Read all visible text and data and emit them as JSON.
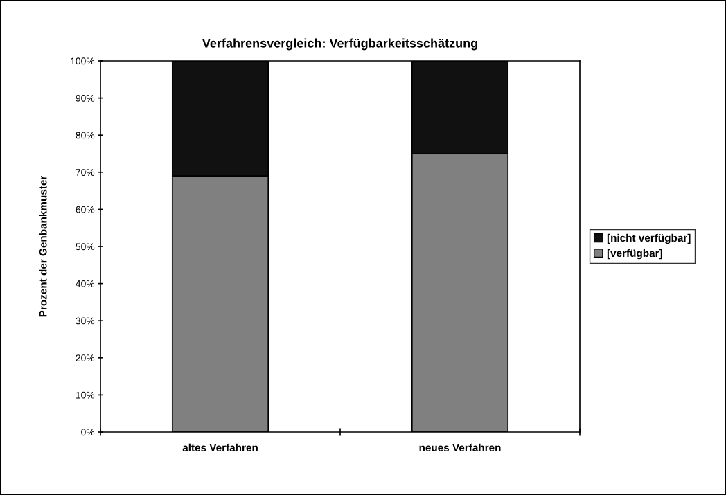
{
  "chart_data": {
    "type": "bar",
    "title": "Verfahrensvergleich: Verfügbarkeitsschätzung",
    "ylabel": "Prozent der Genbankmuster",
    "stacked": true,
    "categories": [
      "altes Verfahren",
      "neues Verfahren"
    ],
    "series": [
      {
        "name": "[verfügbar]",
        "color": "#808080",
        "values": [
          69,
          75
        ]
      },
      {
        "name": "[nicht verfügbar]",
        "color": "#111111",
        "values": [
          31,
          25
        ]
      }
    ],
    "ylim": [
      0,
      100
    ],
    "yticks": [
      {
        "value": 0,
        "label": "0%"
      },
      {
        "value": 10,
        "label": "10%"
      },
      {
        "value": 20,
        "label": "20%"
      },
      {
        "value": 30,
        "label": "30%"
      },
      {
        "value": 40,
        "label": "40%"
      },
      {
        "value": 50,
        "label": "50%"
      },
      {
        "value": 60,
        "label": "60%"
      },
      {
        "value": 70,
        "label": "70%"
      },
      {
        "value": 80,
        "label": "80%"
      },
      {
        "value": 90,
        "label": "90%"
      },
      {
        "value": 100,
        "label": "100%"
      }
    ],
    "grid": false,
    "legend": "right"
  }
}
